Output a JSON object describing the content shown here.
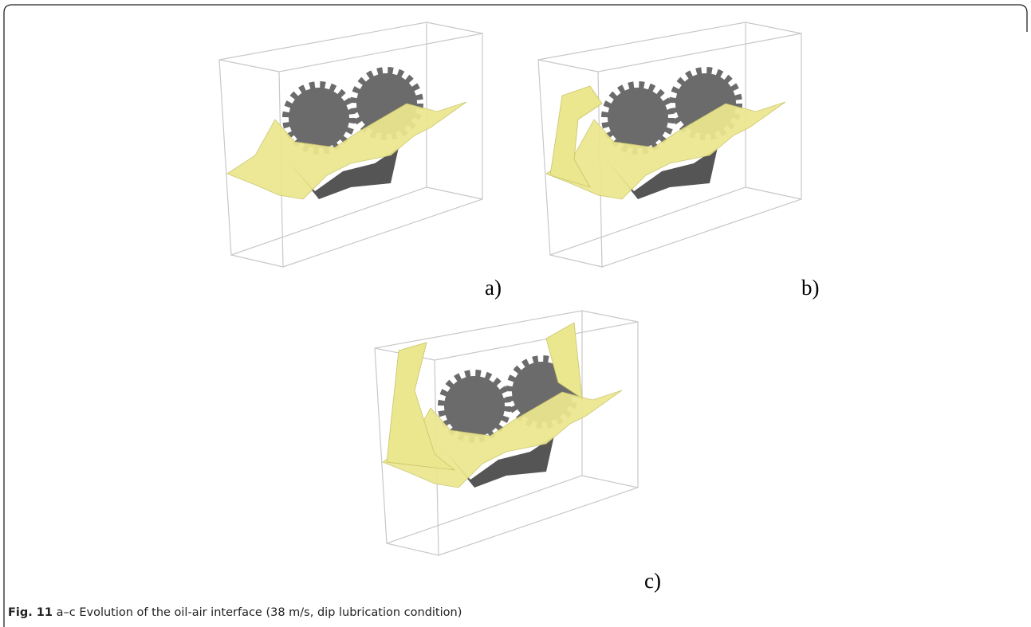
{
  "panels": [
    {
      "label": "a)"
    },
    {
      "label": "b)"
    },
    {
      "label": "c)"
    }
  ],
  "caption": {
    "label": "Fig. 11",
    "text": "a–c Evolution of the oil-air interface (38 m/s, dip lubrication condition)"
  }
}
